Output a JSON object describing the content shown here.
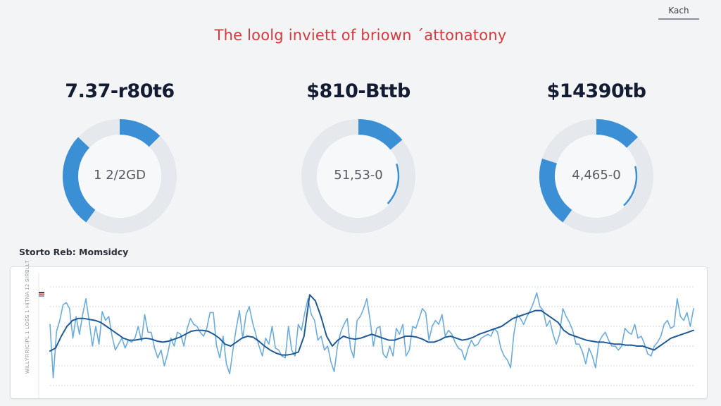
{
  "header": {
    "top_button_label": "Kach",
    "title": "The loolg inviett of briown ´attonatony"
  },
  "colors": {
    "title_red": "#d63a3a",
    "accent_blue": "#3b8fd4",
    "dark_blue": "#1f5a96",
    "light_blue": "#5aa3dc",
    "track_gray": "#e5e8ed",
    "background": "#f3f4f6"
  },
  "kpis": [
    {
      "value": "7.37-r80t6",
      "center_label": "1 2/2GD",
      "segments": [
        {
          "start_pct": 0,
          "end_pct": 12.5,
          "style": "thick"
        },
        {
          "start_pct": 60,
          "end_pct": 87,
          "style": "thick"
        }
      ]
    },
    {
      "value": "$810-Bttb",
      "center_label": "51,53-0",
      "segments": [
        {
          "start_pct": 0,
          "end_pct": 14,
          "style": "thick"
        },
        {
          "start_pct": 20,
          "end_pct": 37,
          "style": "thin"
        }
      ]
    },
    {
      "value": "$14390tb",
      "center_label": "4,465-0",
      "segments": [
        {
          "start_pct": 0,
          "end_pct": 13,
          "style": "thick"
        },
        {
          "start_pct": 21,
          "end_pct": 38,
          "style": "thin"
        },
        {
          "start_pct": 60,
          "end_pct": 80,
          "style": "thick"
        }
      ]
    }
  ],
  "section": {
    "label": "Storto Reb: Momsidcy"
  },
  "chart_data": {
    "type": "line",
    "title": "Storto Reb: Momsidcy",
    "xlabel": "",
    "ylabel": "WILLYRRICIPL 1 LOSS 1 HITNA 12 SIRBLLT",
    "ylim": [
      0,
      100
    ],
    "grid": true,
    "legend": "top-left",
    "series": [
      {
        "name": "raw",
        "color": "#5aa3dc",
        "values": [
          62,
          8,
          55,
          66,
          82,
          84,
          78,
          48,
          70,
          52,
          72,
          88,
          65,
          40,
          60,
          42,
          75,
          66,
          70,
          50,
          36,
          42,
          48,
          38,
          46,
          44,
          48,
          60,
          45,
          72,
          54,
          54,
          38,
          28,
          36,
          20,
          32,
          48,
          40,
          54,
          52,
          40,
          58,
          68,
          62,
          60,
          54,
          50,
          58,
          74,
          74,
          40,
          28,
          50,
          22,
          12,
          36,
          58,
          76,
          48,
          72,
          80,
          64,
          52,
          40,
          30,
          48,
          42,
          60,
          38,
          36,
          30,
          28,
          60,
          36,
          30,
          62,
          56,
          74,
          88,
          72,
          66,
          46,
          50,
          36,
          40,
          24,
          14,
          40,
          54,
          62,
          68,
          38,
          28,
          66,
          70,
          78,
          88,
          66,
          40,
          58,
          60,
          32,
          28,
          40,
          30,
          58,
          52,
          62,
          30,
          36,
          60,
          58,
          68,
          78,
          74,
          46,
          60,
          66,
          62,
          72,
          50,
          56,
          52,
          44,
          38,
          36,
          26,
          38,
          46,
          40,
          42,
          48,
          50,
          52,
          50,
          58,
          54,
          38,
          30,
          26,
          18,
          52,
          72,
          68,
          62,
          70,
          76,
          84,
          94,
          80,
          76,
          60,
          66,
          52,
          42,
          52,
          78,
          70,
          64,
          56,
          42,
          42,
          34,
          22,
          38,
          30,
          18,
          44,
          50,
          54,
          46,
          40,
          40,
          36,
          40,
          58,
          54,
          52,
          62,
          48,
          50,
          42,
          32,
          30,
          40,
          44,
          50,
          62,
          66,
          58,
          60,
          88,
          70,
          66,
          74,
          60,
          78
        ]
      },
      {
        "name": "smoothed",
        "color": "#1f5a96",
        "values": [
          35,
          38,
          50,
          60,
          66,
          68,
          68,
          67,
          66,
          64,
          60,
          56,
          52,
          48,
          46,
          46,
          47,
          48,
          47,
          45,
          44,
          45,
          47,
          49,
          52,
          55,
          56,
          56,
          55,
          52,
          48,
          42,
          40,
          44,
          48,
          50,
          49,
          45,
          40,
          36,
          33,
          31,
          31,
          32,
          34,
          50,
          92,
          86,
          70,
          50,
          40,
          46,
          50,
          48,
          47,
          48,
          50,
          52,
          50,
          48,
          46,
          46,
          48,
          50,
          50,
          49,
          47,
          44,
          44,
          46,
          49,
          50,
          48,
          46,
          47,
          49,
          52,
          54,
          56,
          58,
          60,
          64,
          68,
          70,
          72,
          74,
          76,
          76,
          72,
          68,
          64,
          56,
          52,
          50,
          48,
          46,
          45,
          44,
          44,
          43,
          42,
          42,
          41,
          41,
          40,
          40,
          38,
          36,
          40,
          44,
          48,
          50,
          52,
          54,
          56
        ]
      }
    ]
  }
}
